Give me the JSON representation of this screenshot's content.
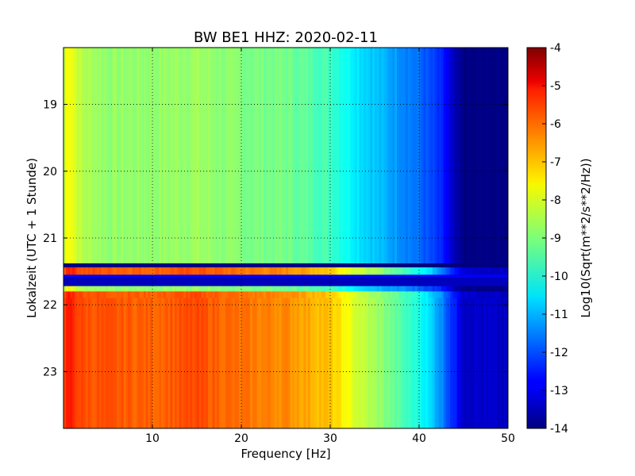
{
  "chart_data": {
    "type": "heatmap",
    "title": "BW BE1 HHZ: 2020-02-11",
    "xlabel": "Frequency [Hz]",
    "ylabel": "Lokalzeit (UTC + 1 Stunde)",
    "colorbar_label": "Log10(Sqrt(m**2/s**2/Hz))",
    "colormap": "jet",
    "xlim": [
      0,
      50
    ],
    "ylim": [
      18.15,
      23.85
    ],
    "y_inverted": true,
    "x_ticks": [
      "10",
      "20",
      "30",
      "40",
      "50"
    ],
    "x_tick_values": [
      10,
      20,
      30,
      40,
      50
    ],
    "y_ticks": [
      "19",
      "20",
      "21",
      "22",
      "23"
    ],
    "y_tick_values": [
      19,
      20,
      21,
      22,
      23
    ],
    "clim": [
      -14,
      -4
    ],
    "colorbar_ticks": [
      "-4",
      "-5",
      "-6",
      "-7",
      "-8",
      "-9",
      "-10",
      "-11",
      "-12",
      "-13",
      "-14"
    ],
    "colorbar_tick_values": [
      -4,
      -5,
      -6,
      -7,
      -8,
      -9,
      -10,
      -11,
      -12,
      -13,
      -14
    ],
    "grid": true,
    "grid_style": "dotted",
    "profiles": {
      "frequency": [
        0,
        0.5,
        1,
        2,
        5,
        10,
        15,
        20,
        25,
        30,
        33,
        36,
        38,
        40,
        42,
        43,
        44,
        45,
        50
      ],
      "quiet": [
        -8.6,
        -7.6,
        -7.9,
        -8.5,
        -8.8,
        -8.8,
        -8.7,
        -9.0,
        -9.1,
        -9.6,
        -10.4,
        -11.0,
        -11.3,
        -11.7,
        -12.3,
        -12.7,
        -13.6,
        -14.0,
        -14.0
      ],
      "loud": [
        -6.3,
        -5.4,
        -5.6,
        -6.0,
        -6.1,
        -6.2,
        -6.0,
        -6.4,
        -6.6,
        -7.2,
        -8.2,
        -8.9,
        -9.5,
        -10.0,
        -11.0,
        -11.7,
        -12.5,
        -13.2,
        -13.4
      ]
    },
    "time_segments": [
      {
        "from": 18.15,
        "to": 21.38,
        "profile": "quiet"
      },
      {
        "from": 21.38,
        "to": 21.44,
        "value": -14.0
      },
      {
        "from": 21.44,
        "to": 21.55,
        "profile": "loud"
      },
      {
        "from": 21.55,
        "to": 21.59,
        "value": -12.8
      },
      {
        "from": 21.59,
        "to": 21.72,
        "value": -13.4
      },
      {
        "from": 21.72,
        "to": 21.8,
        "profile": "quiet"
      },
      {
        "from": 21.8,
        "to": 21.9,
        "profile": "loud"
      },
      {
        "from": 21.9,
        "to": 23.85,
        "profile": "loud"
      }
    ]
  }
}
